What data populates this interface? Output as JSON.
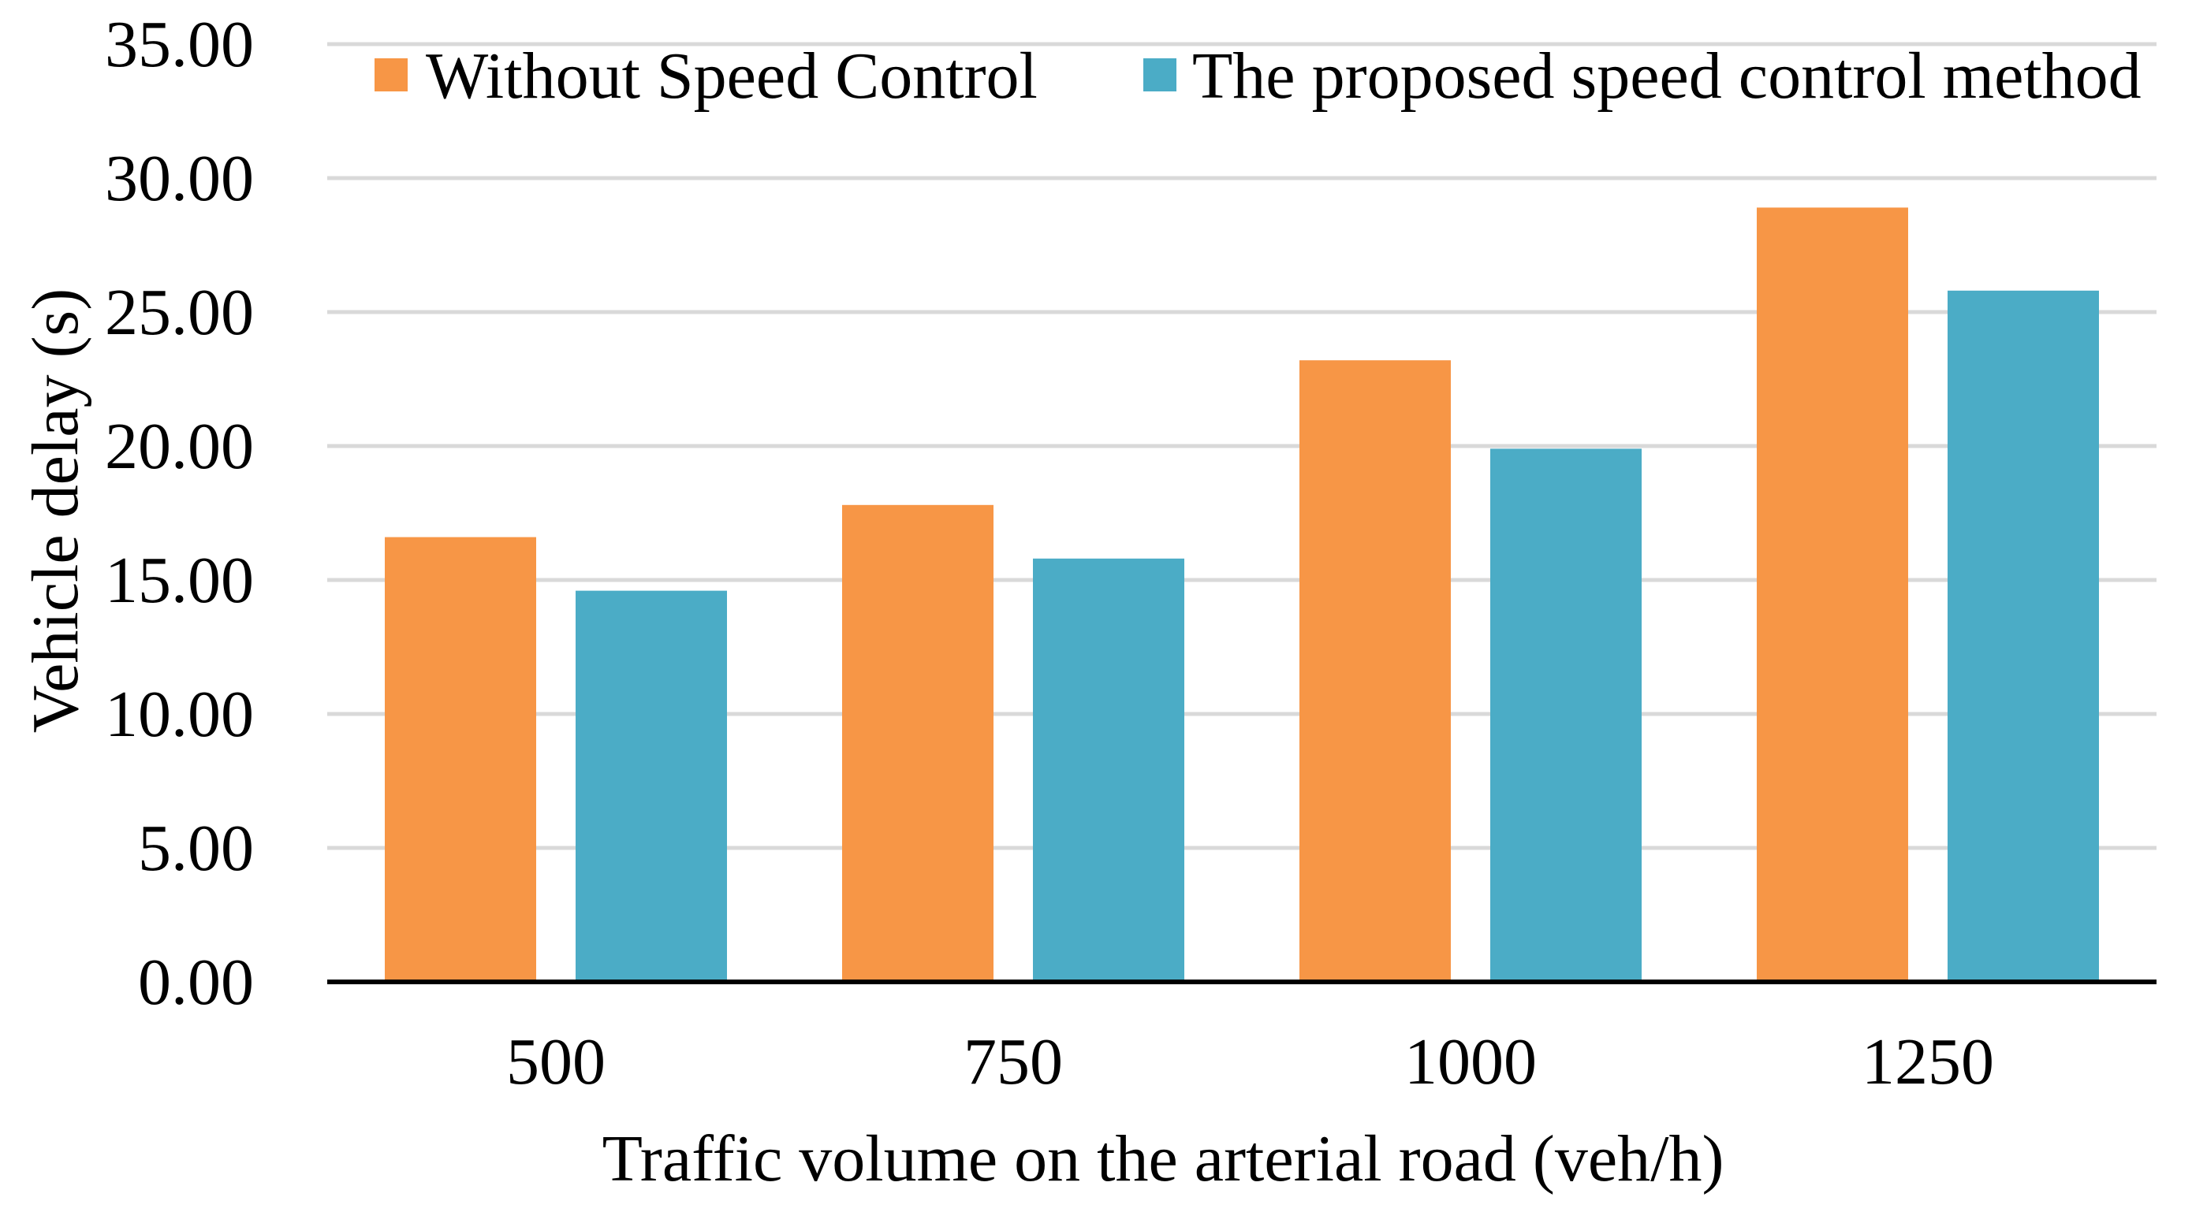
{
  "chart_data": {
    "type": "bar",
    "title": "",
    "xlabel": "Traffic volume on the arterial road (veh/h)",
    "ylabel": "Vehicle delay (s)",
    "categories": [
      "500",
      "750",
      "1000",
      "1250"
    ],
    "series": [
      {
        "name": "Without Speed Control",
        "color": "#f79646",
        "values": [
          16.6,
          17.8,
          23.2,
          28.9
        ]
      },
      {
        "name": "The proposed speed control method",
        "color": "#4bacc6",
        "values": [
          14.6,
          15.8,
          19.9,
          25.8
        ]
      }
    ],
    "ylim": [
      0,
      35
    ],
    "yticks": [
      "0.00",
      "5.00",
      "10.00",
      "15.00",
      "20.00",
      "25.00",
      "30.00",
      "35.00"
    ],
    "grid": true,
    "legend": "top"
  }
}
